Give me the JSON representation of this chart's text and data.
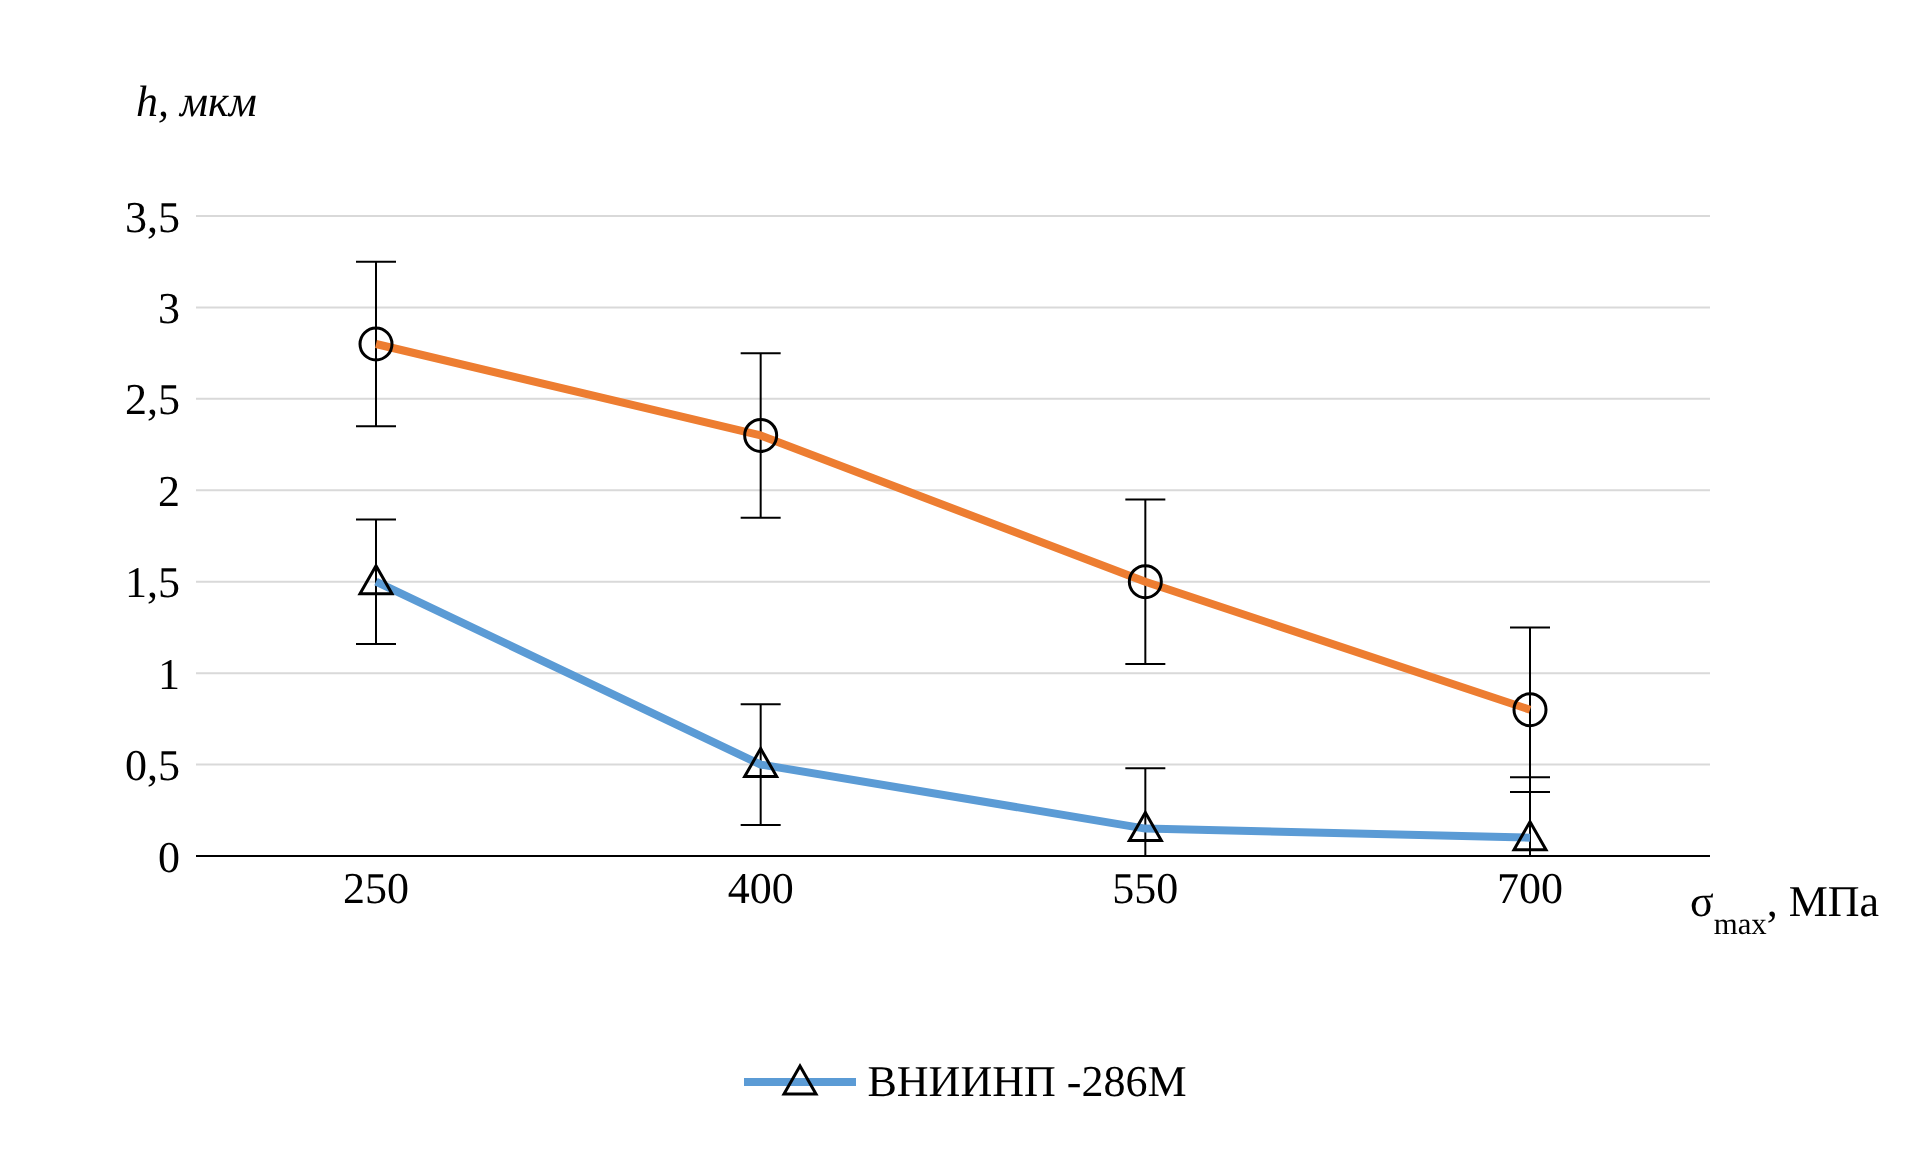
{
  "chart_data": {
    "type": "line",
    "xlabel": "σ$_{max}$, МПа",
    "ylabel": "h, мкм",
    "categories": [
      "250",
      "400",
      "550",
      "700"
    ],
    "ylim": [
      0,
      3.5
    ],
    "yticks": [
      {
        "value": 0,
        "label": "0"
      },
      {
        "value": 0.5,
        "label": "0,5"
      },
      {
        "value": 1,
        "label": "1"
      },
      {
        "value": 1.5,
        "label": "1,5"
      },
      {
        "value": 2,
        "label": "2"
      },
      {
        "value": 2.5,
        "label": "2,5"
      },
      {
        "value": 3,
        "label": "3"
      },
      {
        "value": 3.5,
        "label": "3,5"
      }
    ],
    "grid": "y",
    "legend": "bottom",
    "series": [
      {
        "name": "ВНИИНП -286М",
        "color": "#5b9bd5",
        "marker": "triangle",
        "values": [
          1.5,
          0.5,
          0.15,
          0.1
        ],
        "errors": [
          0.34,
          0.33,
          [
            0,
            0.48
          ],
          [
            0,
            0.43
          ]
        ]
      },
      {
        "color": "#ed7d31",
        "marker": "circle",
        "values": [
          2.8,
          2.3,
          1.5,
          0.8
        ],
        "errors": [
          0.45,
          0.45,
          0.45,
          0.45
        ]
      }
    ]
  }
}
